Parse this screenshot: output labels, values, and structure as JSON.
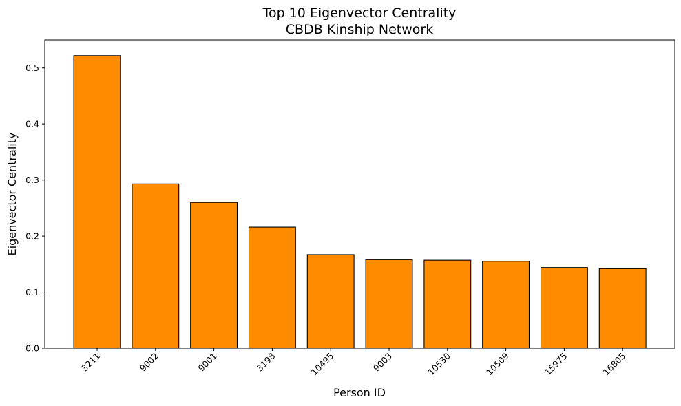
{
  "chart_data": {
    "type": "bar",
    "title_line1": "Top 10 Eigenvector Centrality",
    "title_line2": "CBDB Kinship Network",
    "xlabel": "Person ID",
    "ylabel": "Eigenvector Centrality",
    "categories": [
      "3211",
      "9002",
      "9001",
      "3198",
      "10495",
      "9003",
      "10530",
      "10509",
      "15975",
      "16805"
    ],
    "values": [
      0.522,
      0.293,
      0.26,
      0.216,
      0.167,
      0.158,
      0.157,
      0.155,
      0.144,
      0.142
    ],
    "ylim": [
      0,
      0.55
    ],
    "yticks": [
      "0.0",
      "0.1",
      "0.2",
      "0.3",
      "0.4",
      "0.5"
    ],
    "grid": false,
    "bar_color": "#ff8c00",
    "bar_edge_color": "#000000"
  }
}
